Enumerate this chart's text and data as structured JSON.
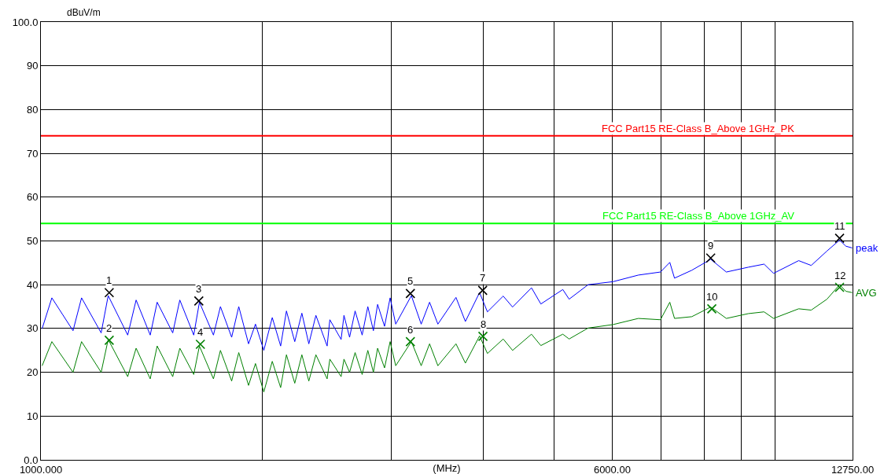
{
  "chart_data": {
    "type": "line",
    "xlabel": "(MHz)",
    "ylabel": "dBuV/m",
    "log": "x",
    "grid": true,
    "marker": "none",
    "line_style": "solid",
    "xlim": [
      1000,
      12750
    ],
    "xticks": [
      {
        "value": 1000,
        "label": "1000.000"
      },
      {
        "value": 2000,
        "label": null
      },
      {
        "value": 3000,
        "label": null
      },
      {
        "value": 4000,
        "label": null
      },
      {
        "value": 5000,
        "label": null
      },
      {
        "value": 6000,
        "label": "6000.00"
      },
      {
        "value": 7000,
        "label": null
      },
      {
        "value": 8000,
        "label": null
      },
      {
        "value": 9000,
        "label": null
      },
      {
        "value": 10000,
        "label": null
      },
      {
        "value": 12750,
        "label": "12750.00"
      }
    ],
    "ylim": [
      0,
      100
    ],
    "yticks": [
      {
        "value": 0,
        "label": "0.0"
      },
      10,
      20,
      30,
      40,
      50,
      60,
      70,
      80,
      90,
      {
        "value": 100,
        "label": "100.0"
      }
    ],
    "series": [
      {
        "name": "peak",
        "color": "#0000ff",
        "x": [
          1004,
          1035,
          1106,
          1136,
          1208,
          1235,
          1313,
          1348,
          1409,
          1440,
          1512,
          1546,
          1615,
          1644,
          1718,
          1756,
          1819,
          1860,
          1918,
          1960,
          2012,
          2066,
          2121,
          2160,
          2217,
          2267,
          2317,
          2369,
          2454,
          2475,
          2564,
          2587,
          2633,
          2679,
          2739,
          2788,
          2837,
          2875,
          2938,
          2990,
          3043,
          3196,
          3296,
          3384,
          3473,
          3676,
          3786,
          3958,
          4057,
          4263,
          4390,
          4658,
          4797,
          5139,
          5242,
          5563,
          6017,
          6513,
          6980,
          7188,
          7295,
          7701,
          8172,
          8583,
          9196,
          9661,
          9952,
          10768,
          11200,
          11768,
          12243,
          12487,
          12734
        ],
        "values": [
          30,
          37,
          29.5,
          37,
          29,
          37.5,
          28.5,
          36.5,
          28.5,
          36,
          29,
          36.5,
          28.5,
          36,
          28.5,
          35,
          28,
          35,
          26.5,
          31,
          25,
          32.5,
          26,
          34,
          27,
          33.5,
          26.5,
          33,
          26,
          32,
          27.5,
          33,
          28,
          34,
          28.5,
          35,
          29.5,
          35.5,
          30.5,
          37,
          31,
          37.5,
          31,
          36,
          31,
          37.1,
          31.6,
          38.2,
          33.8,
          37.4,
          34.9,
          39.3,
          35.6,
          38.9,
          36.7,
          40,
          40.7,
          42.2,
          42.9,
          45.1,
          41.5,
          43.3,
          45.8,
          42.9,
          44,
          44.7,
          42.6,
          45.5,
          44.4,
          47.7,
          50.2,
          48.8,
          48.4
        ]
      },
      {
        "name": "AVG",
        "color": "#008000",
        "x": [
          1004,
          1035,
          1106,
          1136,
          1208,
          1235,
          1313,
          1348,
          1409,
          1440,
          1512,
          1546,
          1615,
          1644,
          1718,
          1756,
          1819,
          1860,
          1918,
          1960,
          2012,
          2066,
          2121,
          2160,
          2217,
          2267,
          2317,
          2369,
          2454,
          2475,
          2564,
          2587,
          2633,
          2679,
          2739,
          2788,
          2837,
          2875,
          2938,
          2990,
          3043,
          3196,
          3296,
          3384,
          3473,
          3676,
          3786,
          3958,
          4057,
          4263,
          4390,
          4658,
          4797,
          5139,
          5242,
          5563,
          6017,
          6513,
          6980,
          7188,
          7295,
          7701,
          8172,
          8583,
          9196,
          9661,
          9952,
          10768,
          11200,
          11768,
          12243,
          12487,
          12734
        ],
        "values": [
          21.5,
          27,
          20,
          27,
          20,
          27.5,
          19,
          25.5,
          18.5,
          26,
          19,
          25.5,
          19.5,
          26,
          18.5,
          25,
          18,
          24.5,
          17,
          22,
          15.5,
          22.5,
          16.5,
          24,
          17.5,
          24,
          18,
          24,
          18.5,
          23,
          19,
          23,
          20,
          24.5,
          19.5,
          25,
          20,
          25.5,
          21,
          27,
          21.5,
          27,
          21.5,
          26.5,
          21.5,
          26.5,
          22.1,
          28.3,
          24.3,
          27.6,
          25,
          28.7,
          26.1,
          28.7,
          27.6,
          30.1,
          30.9,
          32.3,
          32,
          36,
          32.3,
          32.7,
          34.9,
          32.3,
          33.4,
          33.8,
          32.3,
          34.5,
          34.2,
          36.7,
          40,
          38.5,
          38.2
        ]
      },
      {
        "type": "scatter",
        "marker": "cross",
        "color": "#000000",
        "x": [
          1239,
          1641,
          3186,
          3997,
          8172,
          12243
        ],
        "values": [
          38.2,
          36.3,
          38,
          38.7,
          46.1,
          50.6
        ]
      },
      {
        "type": "scatter",
        "marker": "cross",
        "color": "#008000",
        "x": [
          1239,
          1649,
          3186,
          4000,
          8200,
          12243
        ],
        "values": [
          27.3,
          26.4,
          27,
          28.2,
          34.5,
          39.4
        ]
      }
    ],
    "ref_lines": [
      {
        "axis": "y",
        "value": 74,
        "label": "FCC Part15 RE-Class B_Above 1GHz_PK",
        "color": "#ff0000"
      },
      {
        "axis": "y",
        "value": 54,
        "label": "FCC Part15 RE-Class B_Above 1GHz_AV",
        "color": "#00ff00"
      }
    ],
    "annotations": [
      {
        "text": "1",
        "x": 1239,
        "y": 38.2
      },
      {
        "text": "2",
        "x": 1239,
        "y": 27.3
      },
      {
        "text": "3",
        "x": 1641,
        "y": 36.3
      },
      {
        "text": "4",
        "x": 1649,
        "y": 26.4
      },
      {
        "text": "5",
        "x": 3186,
        "y": 38
      },
      {
        "text": "6",
        "x": 3186,
        "y": 27
      },
      {
        "text": "7",
        "x": 3997,
        "y": 38.7
      },
      {
        "text": "8",
        "x": 4000,
        "y": 28.2
      },
      {
        "text": "9",
        "x": 8172,
        "y": 46.1
      },
      {
        "text": "10",
        "x": 8200,
        "y": 34.5
      },
      {
        "text": "11",
        "x": 12243,
        "y": 50.6
      },
      {
        "text": "12",
        "x": 12243,
        "y": 39.4
      }
    ]
  }
}
